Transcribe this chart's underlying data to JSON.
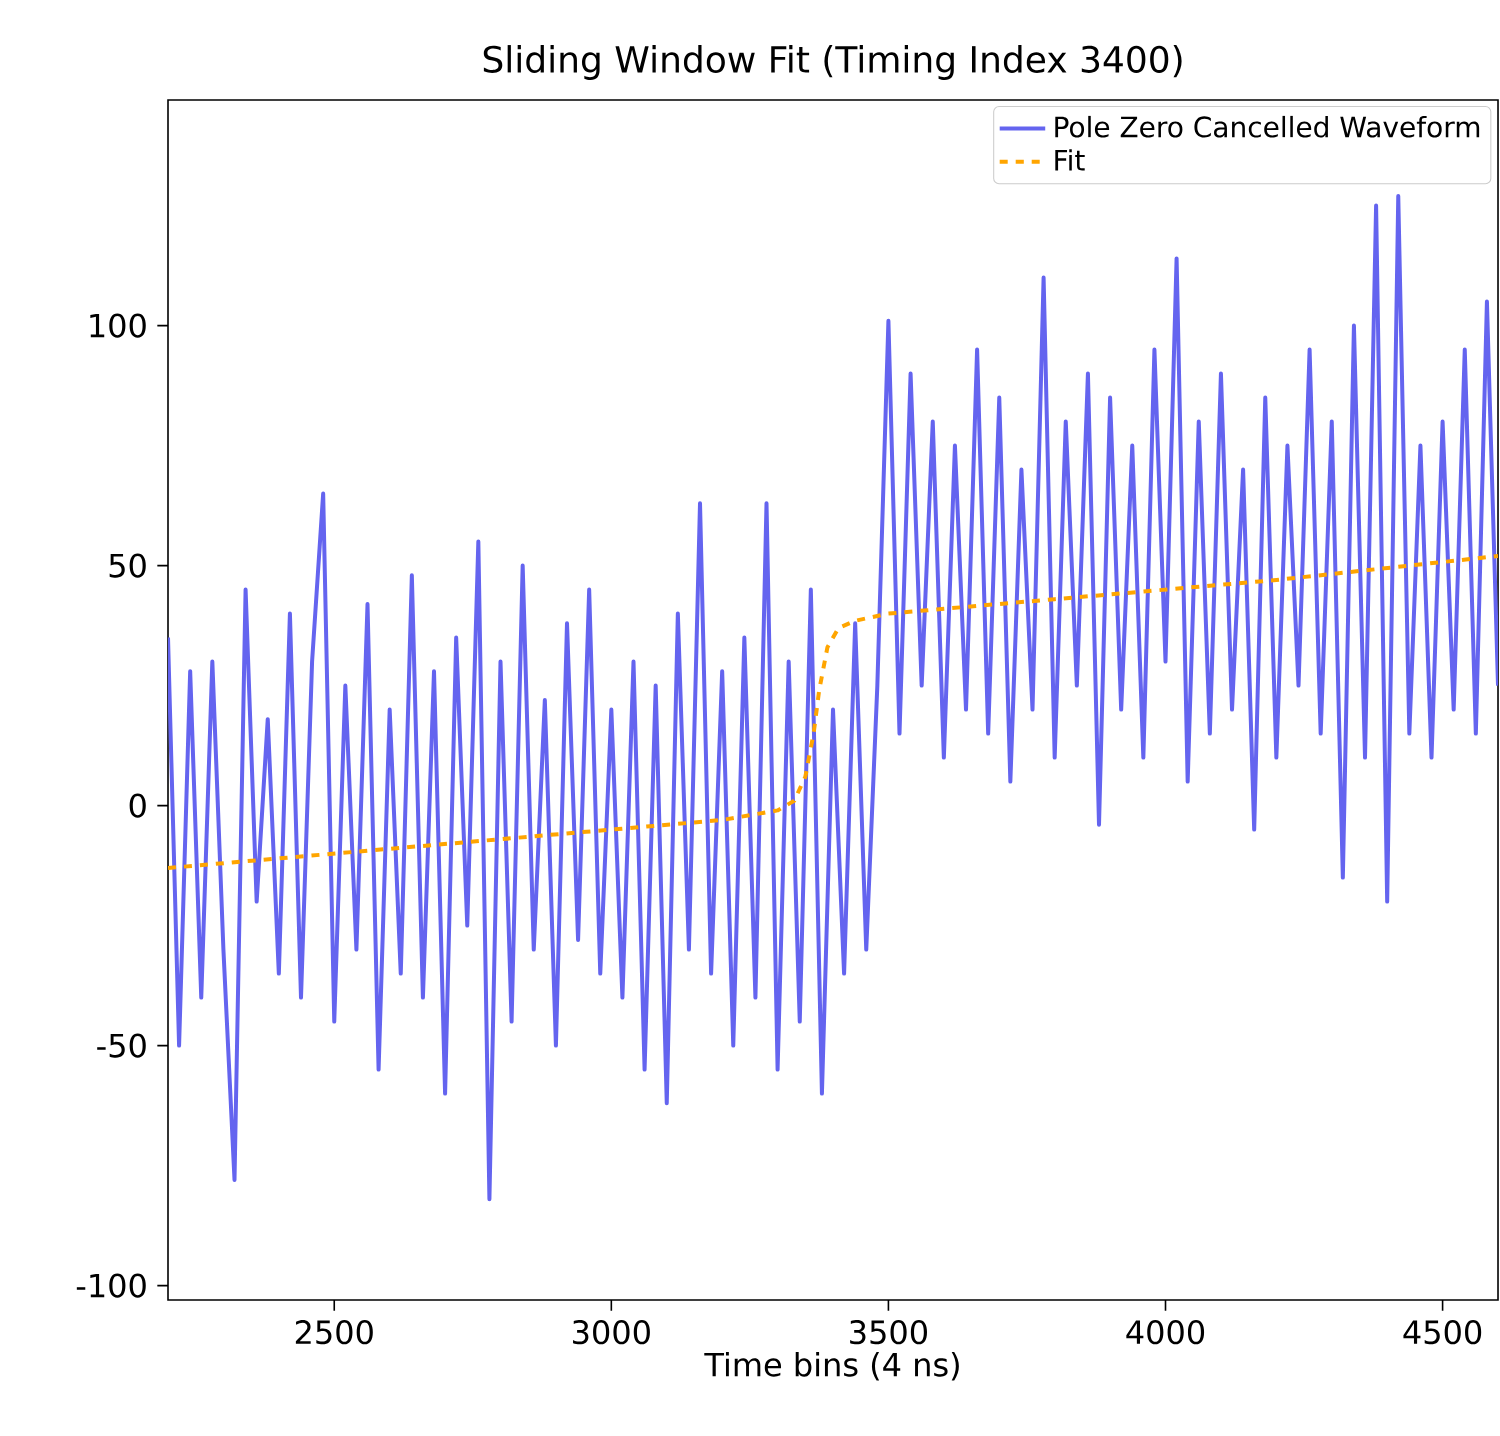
{
  "chart_data": {
    "type": "line",
    "title": "Sliding Window Fit (Timing Index 3400)",
    "xlabel": "Time bins (4 ns)",
    "xlim": [
      2200,
      4600
    ],
    "ylim": [
      -103,
      147
    ],
    "xticks": [
      2500,
      3000,
      3500,
      4000,
      4500
    ],
    "yticks": [
      -100,
      -50,
      0,
      50,
      100
    ],
    "legend": "top right",
    "marker": "none",
    "series": [
      {
        "name": "Pole Zero Cancelled Waveform",
        "color": "#6464ef",
        "line_style": "solid",
        "x": [
          2200,
          2220,
          2240,
          2260,
          2280,
          2300,
          2320,
          2340,
          2360,
          2380,
          2400,
          2420,
          2440,
          2460,
          2480,
          2500,
          2520,
          2540,
          2560,
          2580,
          2600,
          2620,
          2640,
          2660,
          2680,
          2700,
          2720,
          2740,
          2760,
          2780,
          2800,
          2820,
          2840,
          2860,
          2880,
          2900,
          2920,
          2940,
          2960,
          2980,
          3000,
          3020,
          3040,
          3060,
          3080,
          3100,
          3120,
          3140,
          3160,
          3180,
          3200,
          3220,
          3240,
          3260,
          3280,
          3300,
          3320,
          3340,
          3360,
          3380,
          3400,
          3420,
          3440,
          3460,
          3480,
          3500,
          3520,
          3540,
          3560,
          3580,
          3600,
          3620,
          3640,
          3660,
          3680,
          3700,
          3720,
          3740,
          3760,
          3780,
          3800,
          3820,
          3840,
          3860,
          3880,
          3900,
          3920,
          3940,
          3960,
          3980,
          4000,
          4020,
          4040,
          4060,
          4080,
          4100,
          4120,
          4140,
          4160,
          4180,
          4200,
          4220,
          4240,
          4260,
          4280,
          4300,
          4320,
          4340,
          4360,
          4380,
          4400,
          4420,
          4440,
          4460,
          4480,
          4500,
          4520,
          4540,
          4560,
          4580,
          4600
        ],
        "values": [
          35,
          -50,
          28,
          -40,
          30,
          -30,
          -78,
          45,
          -20,
          18,
          -35,
          40,
          -40,
          30,
          65,
          -45,
          25,
          -30,
          42,
          -55,
          20,
          -35,
          48,
          -40,
          28,
          -60,
          35,
          -25,
          55,
          -82,
          30,
          -45,
          50,
          -30,
          22,
          -50,
          38,
          -28,
          45,
          -35,
          20,
          -40,
          30,
          -55,
          25,
          -62,
          40,
          -30,
          63,
          -35,
          28,
          -50,
          35,
          -40,
          63,
          -55,
          30,
          -45,
          45,
          -60,
          20,
          -35,
          38,
          -30,
          25,
          101,
          15,
          90,
          25,
          80,
          10,
          75,
          20,
          95,
          15,
          85,
          5,
          70,
          20,
          110,
          10,
          80,
          25,
          90,
          -4,
          85,
          20,
          75,
          10,
          95,
          30,
          114,
          5,
          80,
          15,
          90,
          20,
          70,
          -5,
          85,
          10,
          75,
          25,
          95,
          15,
          80,
          -15,
          100,
          10,
          125,
          -20,
          127,
          15,
          75,
          10,
          80,
          20,
          95,
          15,
          105,
          25
        ]
      },
      {
        "name": "Fit",
        "color": "#ffa500",
        "line_style": "dashed",
        "x": [
          2200,
          2400,
          2600,
          2800,
          3000,
          3200,
          3300,
          3330,
          3350,
          3365,
          3375,
          3390,
          3410,
          3440,
          3500,
          3800,
          4200,
          4600
        ],
        "values": [
          -13,
          -11,
          -9,
          -7,
          -5,
          -3,
          -1,
          1,
          6,
          15,
          24,
          33,
          37,
          38.5,
          40,
          43,
          47,
          52
        ]
      }
    ]
  }
}
